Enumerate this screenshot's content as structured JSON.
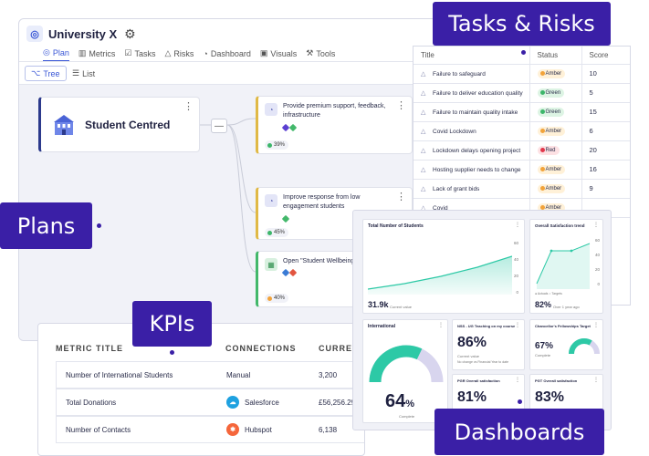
{
  "app": {
    "name": "University X",
    "tabs": [
      {
        "label": "Plan",
        "icon": "target-icon"
      },
      {
        "label": "Metrics",
        "icon": "bar-chart-icon"
      },
      {
        "label": "Tasks",
        "icon": "checkbox-icon"
      },
      {
        "label": "Risks",
        "icon": "warning-icon"
      },
      {
        "label": "Dashboard",
        "icon": "gauge-icon"
      },
      {
        "label": "Visuals",
        "icon": "image-icon"
      },
      {
        "label": "Tools",
        "icon": "tools-icon"
      }
    ],
    "views": {
      "tree": "Tree",
      "list": "List"
    },
    "root_card": "Student Centred",
    "objectives": [
      {
        "text": "Provide premium support, feedback, infrastructure",
        "progress": "39%",
        "progress_value": 39,
        "tags": [
          "#5b3fd1",
          "#43b86b"
        ]
      },
      {
        "text": "Improve response from low engagement students",
        "progress": "45%",
        "progress_value": 45,
        "tags": [
          "#43b86b"
        ]
      },
      {
        "text": "Open \"Student Wellbeing C",
        "progress": "40%",
        "progress_value": 40,
        "tags": [
          "#3a7bd5",
          "#e2553f"
        ]
      }
    ]
  },
  "tasks_risks": {
    "headers": [
      "Title",
      "Status",
      "Score"
    ],
    "rows": [
      {
        "title": "Failure to safeguard",
        "status": "Amber",
        "score": "10"
      },
      {
        "title": "Failure to deliver education quality",
        "status": "Green",
        "score": "5"
      },
      {
        "title": "Failure to maintain quality intake",
        "status": "Green",
        "score": "15"
      },
      {
        "title": "Covid Lockdown",
        "status": "Amber",
        "score": "6"
      },
      {
        "title": "Lockdown delays opening project",
        "status": "Red",
        "score": "20"
      },
      {
        "title": "Hosting supplier needs to change",
        "status": "Amber",
        "score": "16"
      },
      {
        "title": "Lack of grant bids",
        "status": "Amber",
        "score": "9"
      },
      {
        "title": "Covid",
        "status": "Amber",
        "score": ""
      }
    ]
  },
  "dashboard": {
    "total_students": {
      "title": "Total Number of Students",
      "value": "31.9k",
      "caption": "Current value",
      "y_ticks": [
        "60",
        "40",
        "20",
        "0"
      ]
    },
    "satisfaction": {
      "title": "Overall Satisfaction trend",
      "value": "82%",
      "caption": "Over 1 year ago",
      "y_ticks": [
        "60",
        "40",
        "20",
        "0"
      ],
      "legend": "● Actuals  ○ Targets"
    },
    "international": {
      "title": "International",
      "value": "64",
      "unit": "%",
      "caption": "Complete",
      "gauge_value": 64
    },
    "nss": {
      "title": "NSS - UG Teaching on my course",
      "value": "86%",
      "caption": "Current value",
      "note": "No change vs Financial Year to date"
    },
    "fellowships": {
      "title": "Chancellor's Fellowships Target",
      "value": "67%",
      "caption": "Complete",
      "gauge_value": 67
    },
    "pgr": {
      "title": "PGR Overall satisfaction",
      "value": "81%"
    },
    "pgt": {
      "title": "PGT Overall satisfaction",
      "value": "83%"
    }
  },
  "kpis": {
    "headers": [
      "METRIC TITLE",
      "CONNECTIONS",
      "CURREN"
    ],
    "rows": [
      {
        "title": "Number of International Students",
        "connection": "Manual",
        "current": "3,200",
        "icon": ""
      },
      {
        "title": "Total Donations",
        "connection": "Salesforce",
        "current": "£56,256.29",
        "icon": "salesforce-icon"
      },
      {
        "title": "Number of Contacts",
        "connection": "Hubspot",
        "current": "6,138",
        "icon": "hubspot-icon"
      }
    ]
  },
  "callouts": {
    "tasks": "Tasks & Risks",
    "plans": "Plans",
    "kpis": "KPIs",
    "dashboards": "Dashboards"
  },
  "colors": {
    "brand": "#3a1fa6",
    "accent": "#3a57d6",
    "amber": "#f2a33a",
    "green": "#3cb66a",
    "red": "#e2374b",
    "teal": "#2dc9a6"
  }
}
